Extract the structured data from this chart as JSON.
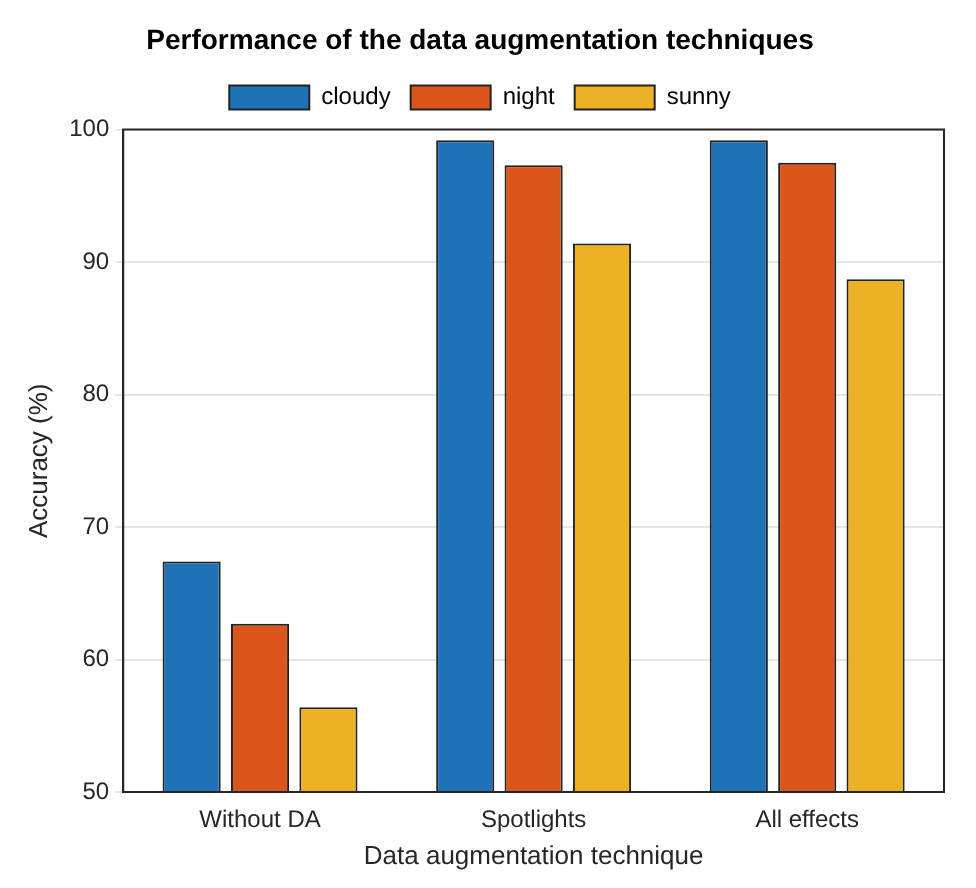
{
  "chart_data": {
    "type": "bar",
    "title": "Performance of the data augmentation techniques",
    "xlabel": "Data augmentation technique",
    "ylabel": "Accuracy (%)",
    "categories": [
      "Without DA",
      "Spotlights",
      "All effects"
    ],
    "series": [
      {
        "name": "cloudy",
        "color": "#1f72b6",
        "values": [
          67.4,
          99.2,
          99.2
        ]
      },
      {
        "name": "night",
        "color": "#da561b",
        "values": [
          62.7,
          97.3,
          97.5
        ]
      },
      {
        "name": "sunny",
        "color": "#ecb124",
        "values": [
          56.4,
          91.4,
          88.7
        ]
      }
    ],
    "ylim": [
      50,
      100
    ],
    "yticks": [
      50,
      60,
      70,
      80,
      90,
      100
    ],
    "grid": "y",
    "legend": "top"
  }
}
